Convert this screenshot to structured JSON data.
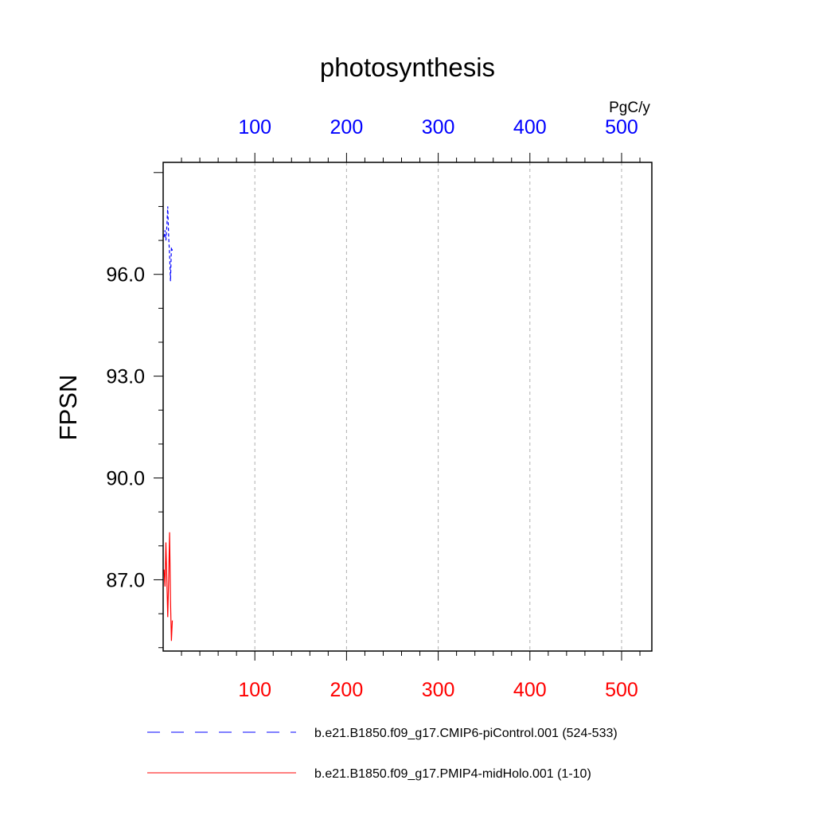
{
  "chart_data": {
    "type": "line",
    "title": "photosynthesis",
    "ylabel": "FPSN",
    "top_axis_units": "PgC/y",
    "xlim": [
      0,
      533
    ],
    "ylim": [
      84.9,
      99.3
    ],
    "top_ticks": [
      100,
      200,
      300,
      400,
      500
    ],
    "bottom_ticks": [
      100,
      200,
      300,
      400,
      500
    ],
    "top_tick_labels": [
      "100",
      "200",
      "300",
      "400",
      "500"
    ],
    "bottom_tick_labels": [
      "100",
      "200",
      "300",
      "400",
      "500"
    ],
    "y_ticks": [
      87.0,
      90.0,
      93.0,
      96.0
    ],
    "y_tick_labels": [
      "87.0",
      "90.0",
      "93.0",
      "96.0"
    ],
    "grid": "vertical dashed",
    "legend_position": "bottom",
    "series": [
      {
        "name": "b.e21.B1850.f09_g17.CMIP6-piControl.001 (524-533)",
        "color": "#0000ff",
        "dash": "dashed",
        "axis": "top",
        "x": [
          1,
          2,
          3,
          4,
          5,
          6,
          7,
          8,
          9,
          10
        ],
        "y": [
          97.1,
          97.3,
          97.0,
          97.4,
          98.0,
          97.1,
          96.6,
          95.8,
          96.8,
          96.7
        ]
      },
      {
        "name": "b.e21.B1850.f09_g17.PMIP4-midHolo.001 (1-10)",
        "color": "#ff0000",
        "dash": "solid",
        "axis": "bottom",
        "x": [
          1,
          2,
          3,
          4,
          5,
          6,
          7,
          8,
          9,
          10
        ],
        "y": [
          87.3,
          86.8,
          88.1,
          87.0,
          85.9,
          87.0,
          88.4,
          86.4,
          85.2,
          85.8
        ]
      }
    ]
  }
}
